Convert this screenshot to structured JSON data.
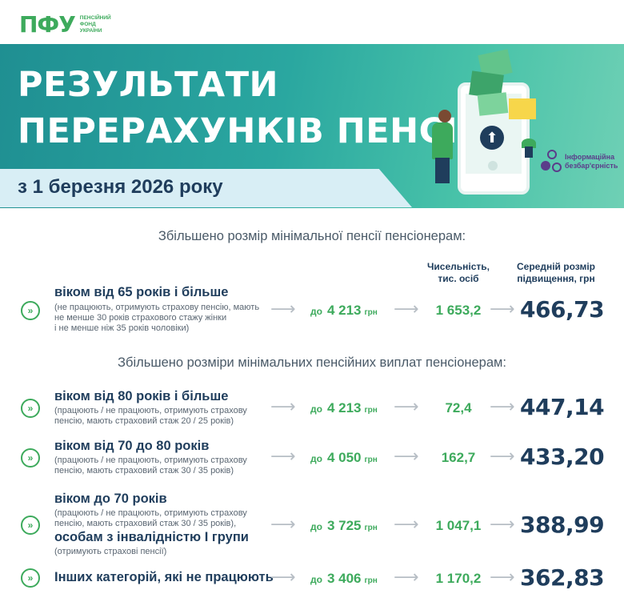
{
  "logo": {
    "mark": "ПФУ",
    "line1": "ПЕНСІЙНИЙ",
    "line2": "ФОНД",
    "line3": "УКРАЇНИ"
  },
  "banner": {
    "title_line1": "РЕЗУЛЬТАТИ",
    "title_line2": "ПЕРЕРАХУНКІВ ПЕНСІЙ",
    "date": "з 1 березня 2026 року",
    "badge_line1": "Інформаційна",
    "badge_line2": "безбар'єрність"
  },
  "section1": {
    "title": "Збільшено розмір мінімальної пенсії пенсіонерам:",
    "col_count_line1": "Чисельність,",
    "col_count_line2": "тис. осіб",
    "col_increase_line1": "Середній розмір",
    "col_increase_line2": "підвищення, грн",
    "rows": [
      {
        "category": "віком від 65 років і більше",
        "note_line1": "(не працюють, отримують страхову пенсію, мають",
        "note_line2": "не менше 30 років страхового стажу жінки",
        "note_line3": "і не менше ніж 35 років чоловіки)",
        "pre": "до",
        "amount": "4 213",
        "currency": "грн",
        "count": "1 653,2",
        "increase": "466,73"
      }
    ]
  },
  "section2": {
    "title": "Збільшено розміри мінімальних пенсійних виплат пенсіонерам:",
    "rows": [
      {
        "category": "віком від 80 років і більше",
        "note_line1": "(працюють / не працюють, отримують страхову",
        "note_line2": "пенсію, мають страховий стаж 20 / 25 років)",
        "pre": "до",
        "amount": "4 213",
        "currency": "грн",
        "count": "72,4",
        "increase": "447,14"
      },
      {
        "category": "віком від 70 до 80 років",
        "note_line1": "(працюють / не працюють, отримують страхову",
        "note_line2": "пенсію, мають страховий стаж 30 / 35 років)",
        "pre": "до",
        "amount": "4 050",
        "currency": "грн",
        "count": "162,7",
        "increase": "433,20"
      },
      {
        "category": "віком до 70 років",
        "note_line1": "(працюють / не працюють, отримують страхову",
        "note_line2": "пенсію, мають страховий стаж 30 / 35 років),",
        "category2": "особам з інвалідністю I групи",
        "note2": "(отримують страхові пенсії)",
        "pre": "до",
        "amount": "3 725",
        "currency": "грн",
        "count": "1 047,1",
        "increase": "388,99"
      },
      {
        "category": "Інших категорій, які не працюють",
        "pre": "до",
        "amount": "3 406",
        "currency": "грн",
        "count": "1 170,2",
        "increase": "362,83"
      }
    ]
  },
  "colors": {
    "green": "#3daa5c",
    "navy": "#1f3d5c",
    "teal": "#2aa7a0"
  },
  "icons": {
    "row_marker": "chevron-double-right-icon",
    "flow": "arrow-right-icon"
  }
}
